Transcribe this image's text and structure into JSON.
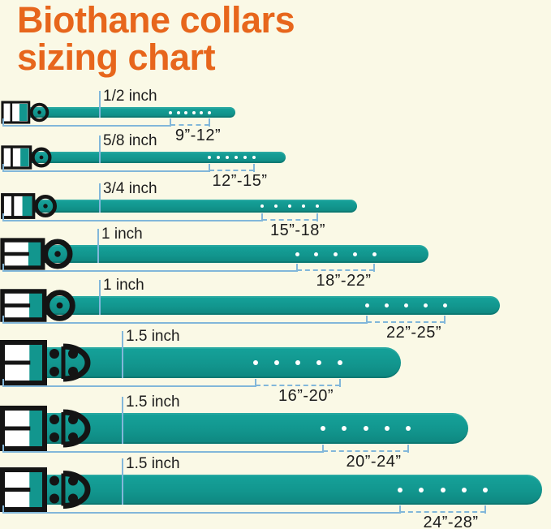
{
  "title": {
    "line1": "Biothane collars",
    "line2": "sizing chart"
  },
  "colors": {
    "background": "#FAF9E6",
    "title_orange": "#E7661C",
    "strap_teal": "#12968E",
    "strap_teal_light": "#15A29A",
    "strap_teal_dark": "#0E867F",
    "bracket_blue": "#82B7DA",
    "text_dark": "#1C1C1C",
    "buckle_black": "#141414",
    "hole_white": "#FFFFFF"
  },
  "collars": [
    {
      "width_label": "1/2 inch",
      "range_label": "9”-12”",
      "holes": 6
    },
    {
      "width_label": "5/8 inch",
      "range_label": "12”-15”",
      "holes": 6
    },
    {
      "width_label": "3/4 inch",
      "range_label": "15”-18”",
      "holes": 5
    },
    {
      "width_label": "1 inch",
      "range_label": "18”-22”",
      "holes": 5
    },
    {
      "width_label": "1 inch",
      "range_label": "22”-25”",
      "holes": 5
    },
    {
      "width_label": "1.5 inch",
      "range_label": "16”-20”",
      "holes": 5
    },
    {
      "width_label": "1.5 inch",
      "range_label": "20”-24”",
      "holes": 5
    },
    {
      "width_label": "1.5 inch",
      "range_label": "24”-28”",
      "holes": 5
    }
  ],
  "chart_data": {
    "type": "table",
    "title": "Biothane collars sizing chart",
    "columns": [
      "collar_width",
      "neck_size_range"
    ],
    "rows": [
      [
        "1/2 inch",
        "9\"-12\""
      ],
      [
        "5/8 inch",
        "12\"-15\""
      ],
      [
        "3/4 inch",
        "15\"-18\""
      ],
      [
        "1 inch",
        "18\"-22\""
      ],
      [
        "1 inch",
        "22\"-25\""
      ],
      [
        "1.5 inch",
        "16\"-20\""
      ],
      [
        "1.5 inch",
        "20\"-24\""
      ],
      [
        "1.5 inch",
        "24\"-28\""
      ]
    ]
  }
}
